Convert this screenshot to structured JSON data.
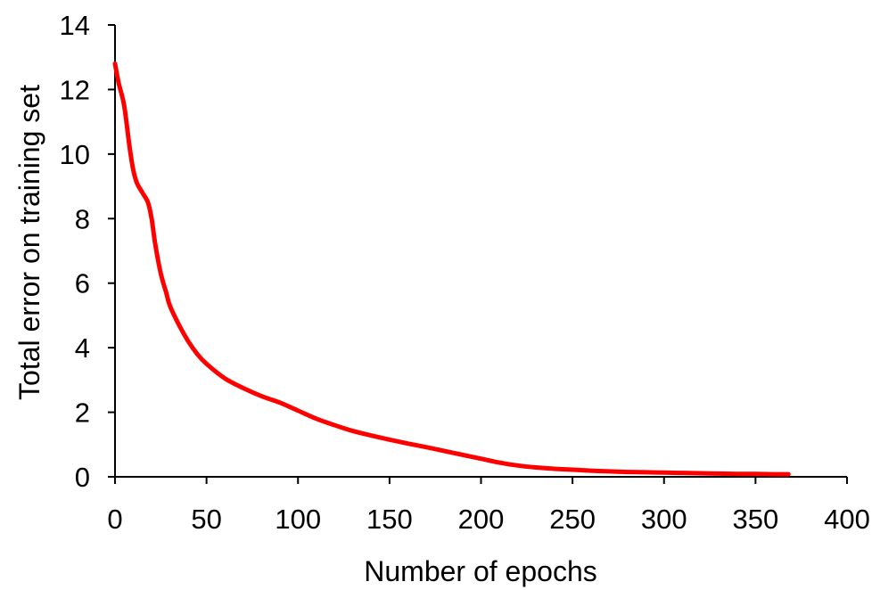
{
  "chart_data": {
    "type": "line",
    "title": "",
    "xlabel": "Number of epochs",
    "ylabel": "Total error on training set",
    "xlim": [
      0,
      400
    ],
    "ylim": [
      0,
      14
    ],
    "xticks": [
      0,
      50,
      100,
      150,
      200,
      250,
      300,
      350,
      400
    ],
    "yticks": [
      0,
      2,
      4,
      6,
      8,
      10,
      12,
      14
    ],
    "grid": false,
    "legend": "none",
    "series": [
      {
        "color": "#ff0000",
        "x": [
          0,
          2,
          5,
          8,
          10,
          12,
          15,
          18,
          20,
          22,
          25,
          28,
          30,
          35,
          40,
          45,
          50,
          60,
          70,
          80,
          90,
          100,
          110,
          120,
          130,
          140,
          150,
          160,
          170,
          180,
          190,
          200,
          210,
          220,
          230,
          240,
          250,
          260,
          270,
          280,
          290,
          300,
          310,
          320,
          330,
          340,
          350,
          360,
          368
        ],
        "y": [
          12.8,
          12.2,
          11.5,
          10.2,
          9.5,
          9.1,
          8.8,
          8.5,
          8.0,
          7.2,
          6.3,
          5.7,
          5.3,
          4.7,
          4.2,
          3.8,
          3.5,
          3.05,
          2.75,
          2.5,
          2.3,
          2.05,
          1.8,
          1.6,
          1.42,
          1.28,
          1.15,
          1.03,
          0.92,
          0.8,
          0.68,
          0.56,
          0.44,
          0.35,
          0.29,
          0.25,
          0.22,
          0.19,
          0.17,
          0.15,
          0.14,
          0.13,
          0.12,
          0.11,
          0.1,
          0.09,
          0.09,
          0.08,
          0.08
        ]
      }
    ]
  }
}
